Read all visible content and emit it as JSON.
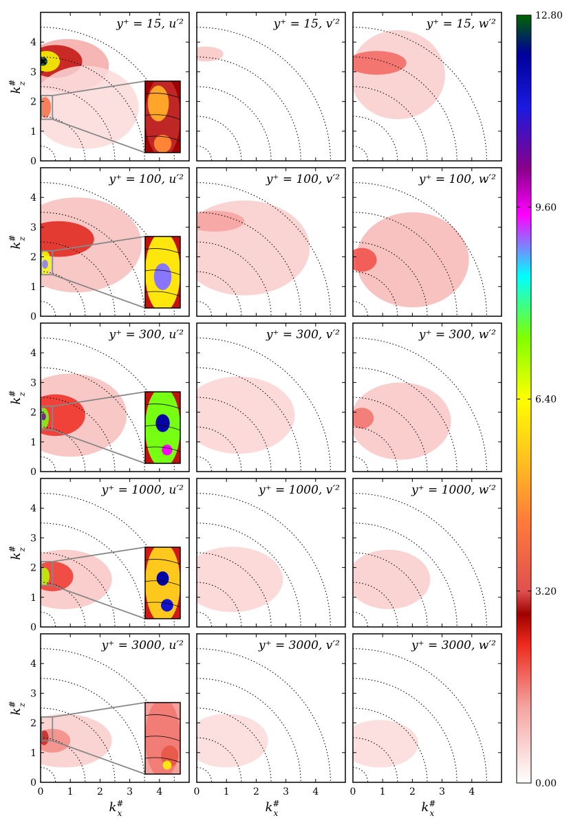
{
  "figure": {
    "xlabel": "k_x^#",
    "ylabel": "k_z^#"
  },
  "chart_data": {
    "type": "heatmap",
    "description_type": "contour-grid",
    "rows": [
      "y+ = 15",
      "y+ = 100",
      "y+ = 300",
      "y+ = 1000",
      "y+ = 3000"
    ],
    "columns": [
      "u'2",
      "v'2",
      "w'2"
    ],
    "titles": [
      [
        "y⁺ = 15,  u′²",
        "y⁺ = 15,  v′²",
        "y⁺ = 15,  w′²"
      ],
      [
        "y⁺ = 100,  u′²",
        "y⁺ = 100,  v′²",
        "y⁺ = 100,  w′²"
      ],
      [
        "y⁺ = 300,  u′²",
        "y⁺ = 300,  v′²",
        "y⁺ = 300,  w′²"
      ],
      [
        "y⁺ = 1000,  u′²",
        "y⁺ = 1000,  v′²",
        "y⁺ = 1000,  w′²"
      ],
      [
        "y⁺ = 3000,  u′²",
        "y⁺ = 3000,  v′²",
        "y⁺ = 3000,  w′²"
      ]
    ],
    "xlabel": "k_x^#",
    "ylabel": "k_z^#",
    "xlim": [
      0,
      5
    ],
    "ylim": [
      0,
      5
    ],
    "xticks": [
      0,
      1,
      2,
      3,
      4
    ],
    "yticks": [
      0,
      1,
      2,
      3,
      4
    ],
    "reference_arcs_radius": [
      0.5,
      1.5,
      2.5,
      3.5,
      4.5
    ],
    "inset_region": {
      "x": [
        0,
        0.4
      ],
      "y": [
        1.4,
        2.2
      ]
    },
    "marker": {
      "row": 0,
      "col": 0,
      "x": 0.08,
      "y": 3.35,
      "symbol": "x"
    },
    "colorbar": {
      "min": 0.0,
      "max": 12.8,
      "ticks": [
        0.0,
        3.2,
        6.4,
        9.6,
        12.8
      ],
      "tick_labels": [
        "0.00",
        "3.20",
        "6.40",
        "9.60",
        "12.80"
      ]
    },
    "blobs": [
      [
        [
          {
            "x": 0.9,
            "y": 3.2,
            "rx": 1.4,
            "ry": 0.9,
            "v": 1.2
          },
          {
            "x": 0.5,
            "y": 3.35,
            "rx": 0.9,
            "ry": 0.55,
            "v": 2.6
          },
          {
            "x": 0.2,
            "y": 3.35,
            "rx": 0.45,
            "ry": 0.35,
            "v": 6.5
          },
          {
            "x": 0.08,
            "y": 3.35,
            "rx": 0.15,
            "ry": 0.15,
            "v": 12.5
          },
          {
            "x": 1.5,
            "y": 1.8,
            "rx": 1.8,
            "ry": 1.4,
            "v": 0.5
          },
          {
            "x": 0.15,
            "y": 1.8,
            "rx": 0.2,
            "ry": 0.35,
            "v": 4.0
          }
        ],
        [
          {
            "x": 0.3,
            "y": 3.6,
            "rx": 0.6,
            "ry": 0.25,
            "v": 0.8
          }
        ],
        [
          {
            "x": 1.5,
            "y": 2.9,
            "rx": 1.6,
            "ry": 1.5,
            "v": 0.7
          },
          {
            "x": 0.8,
            "y": 3.3,
            "rx": 1.0,
            "ry": 0.4,
            "v": 1.8
          }
        ]
      ],
      [
        [
          {
            "x": 1.2,
            "y": 2.4,
            "rx": 2.2,
            "ry": 1.6,
            "v": 0.9
          },
          {
            "x": 0.6,
            "y": 2.6,
            "rx": 1.2,
            "ry": 0.6,
            "v": 2.4
          },
          {
            "x": 0.15,
            "y": 1.8,
            "rx": 0.2,
            "ry": 0.4,
            "v": 6.5
          },
          {
            "x": 0.15,
            "y": 1.75,
            "rx": 0.1,
            "ry": 0.15,
            "v": 9.0
          }
        ],
        [
          {
            "x": 1.6,
            "y": 2.3,
            "rx": 2.2,
            "ry": 1.6,
            "v": 0.7
          },
          {
            "x": 0.6,
            "y": 3.2,
            "rx": 1.0,
            "ry": 0.35,
            "v": 1.3
          }
        ],
        [
          {
            "x": 2.0,
            "y": 1.9,
            "rx": 1.9,
            "ry": 1.6,
            "v": 1.0
          },
          {
            "x": 0.3,
            "y": 1.9,
            "rx": 0.5,
            "ry": 0.4,
            "v": 2.0
          }
        ]
      ],
      [
        [
          {
            "x": 1.0,
            "y": 1.9,
            "rx": 1.9,
            "ry": 1.4,
            "v": 0.9
          },
          {
            "x": 0.5,
            "y": 1.9,
            "rx": 1.0,
            "ry": 0.7,
            "v": 2.3
          },
          {
            "x": 0.1,
            "y": 1.8,
            "rx": 0.18,
            "ry": 0.35,
            "v": 7.5
          },
          {
            "x": 0.1,
            "y": 1.85,
            "rx": 0.08,
            "ry": 0.12,
            "v": 10.5
          }
        ],
        [
          {
            "x": 1.4,
            "y": 1.9,
            "rx": 1.9,
            "ry": 1.3,
            "v": 0.6
          }
        ],
        [
          {
            "x": 1.6,
            "y": 1.7,
            "rx": 1.7,
            "ry": 1.3,
            "v": 0.8
          },
          {
            "x": 0.3,
            "y": 1.8,
            "rx": 0.4,
            "ry": 0.35,
            "v": 1.7
          }
        ]
      ],
      [
        [
          {
            "x": 0.8,
            "y": 1.6,
            "rx": 1.6,
            "ry": 1.0,
            "v": 0.8
          },
          {
            "x": 0.4,
            "y": 1.7,
            "rx": 0.7,
            "ry": 0.5,
            "v": 2.2
          },
          {
            "x": 0.12,
            "y": 1.7,
            "rx": 0.18,
            "ry": 0.3,
            "v": 7.0
          }
        ],
        [
          {
            "x": 1.2,
            "y": 1.6,
            "rx": 1.7,
            "ry": 1.1,
            "v": 0.6
          }
        ],
        [
          {
            "x": 1.2,
            "y": 1.6,
            "rx": 1.4,
            "ry": 1.0,
            "v": 0.7
          }
        ]
      ],
      [
        [
          {
            "x": 0.8,
            "y": 1.4,
            "rx": 1.6,
            "ry": 0.9,
            "v": 0.7
          },
          {
            "x": 0.4,
            "y": 1.4,
            "rx": 0.6,
            "ry": 0.4,
            "v": 1.5
          },
          {
            "x": 0.12,
            "y": 1.5,
            "rx": 0.15,
            "ry": 0.25,
            "v": 3.0
          }
        ],
        [
          {
            "x": 1.0,
            "y": 1.4,
            "rx": 1.4,
            "ry": 0.9,
            "v": 0.5
          }
        ],
        [
          {
            "x": 0.9,
            "y": 1.3,
            "rx": 1.3,
            "ry": 0.8,
            "v": 0.5
          }
        ]
      ]
    ],
    "inset_blobs": [
      [
        {
          "x": 0.2,
          "y": 1.8,
          "rx": 0.2,
          "ry": 0.45,
          "v": 3.0
        },
        {
          "x": 0.15,
          "y": 1.95,
          "rx": 0.12,
          "ry": 0.2,
          "v": 5.0
        },
        {
          "x": 0.2,
          "y": 1.5,
          "rx": 0.1,
          "ry": 0.1,
          "v": 4.5
        }
      ],
      [
        {
          "x": 0.2,
          "y": 1.8,
          "rx": 0.2,
          "ry": 0.45,
          "v": 6.0
        },
        {
          "x": 0.2,
          "y": 1.75,
          "rx": 0.1,
          "ry": 0.15,
          "v": 9.0
        }
      ],
      [
        {
          "x": 0.2,
          "y": 1.8,
          "rx": 0.2,
          "ry": 0.45,
          "v": 7.5
        },
        {
          "x": 0.2,
          "y": 1.85,
          "rx": 0.08,
          "ry": 0.1,
          "v": 12.0
        },
        {
          "x": 0.25,
          "y": 1.55,
          "rx": 0.06,
          "ry": 0.06,
          "v": 9.5
        }
      ],
      [
        {
          "x": 0.2,
          "y": 1.8,
          "rx": 0.2,
          "ry": 0.45,
          "v": 5.5
        },
        {
          "x": 0.2,
          "y": 1.85,
          "rx": 0.07,
          "ry": 0.08,
          "v": 12.0
        },
        {
          "x": 0.25,
          "y": 1.55,
          "rx": 0.07,
          "ry": 0.07,
          "v": 11.5
        }
      ],
      [
        {
          "x": 0.2,
          "y": 1.8,
          "rx": 0.2,
          "ry": 0.45,
          "v": 1.6
        },
        {
          "x": 0.28,
          "y": 1.6,
          "rx": 0.1,
          "ry": 0.12,
          "v": 3.5
        },
        {
          "x": 0.25,
          "y": 1.5,
          "rx": 0.05,
          "ry": 0.05,
          "v": 6.0
        }
      ]
    ]
  }
}
